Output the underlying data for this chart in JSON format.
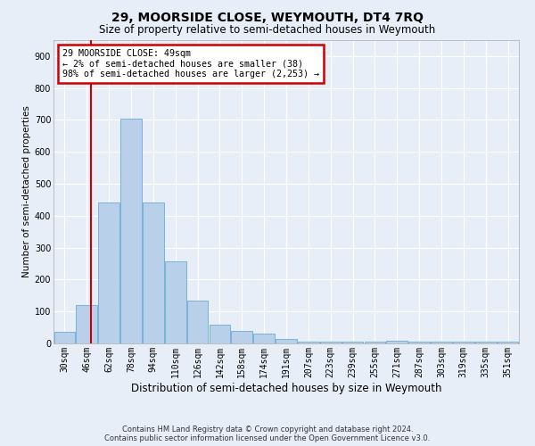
{
  "title1": "29, MOORSIDE CLOSE, WEYMOUTH, DT4 7RQ",
  "title2": "Size of property relative to semi-detached houses in Weymouth",
  "xlabel": "Distribution of semi-detached houses by size in Weymouth",
  "ylabel": "Number of semi-detached properties",
  "annotation_line1": "29 MOORSIDE CLOSE: 49sqm",
  "annotation_line2": "← 2% of semi-detached houses are smaller (38)",
  "annotation_line3": "98% of semi-detached houses are larger (2,253) →",
  "footer1": "Contains HM Land Registry data © Crown copyright and database right 2024.",
  "footer2": "Contains public sector information licensed under the Open Government Licence v3.0.",
  "bar_color": "#b8d0ea",
  "bar_edge_color": "#6aaad4",
  "vline_color": "#cc0000",
  "annotation_box_edge": "#cc0000",
  "categories": [
    "30sqm",
    "46sqm",
    "62sqm",
    "78sqm",
    "94sqm",
    "110sqm",
    "126sqm",
    "142sqm",
    "158sqm",
    "174sqm",
    "191sqm",
    "207sqm",
    "223sqm",
    "239sqm",
    "255sqm",
    "271sqm",
    "287sqm",
    "303sqm",
    "319sqm",
    "335sqm",
    "351sqm"
  ],
  "values": [
    35,
    120,
    442,
    705,
    442,
    258,
    135,
    60,
    38,
    30,
    15,
    5,
    5,
    5,
    5,
    8,
    5,
    5,
    5,
    5,
    5
  ],
  "vline_x": 1.18,
  "ylim": [
    0,
    950
  ],
  "yticks": [
    0,
    100,
    200,
    300,
    400,
    500,
    600,
    700,
    800,
    900
  ],
  "background_color": "#e8eef7",
  "plot_bg": "#e8eef7",
  "grid_color": "#ffffff",
  "title1_fontsize": 10,
  "title2_fontsize": 8.5,
  "annotation_fontsize": 7.2,
  "ylabel_fontsize": 7.5,
  "xlabel_fontsize": 8.5,
  "footer_fontsize": 6.0,
  "tick_fontsize": 7.0
}
